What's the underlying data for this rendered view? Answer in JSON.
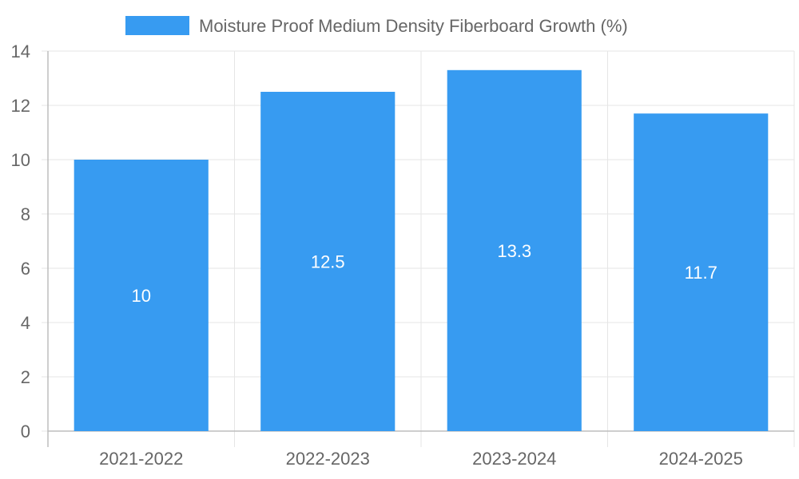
{
  "chart_data": {
    "type": "bar",
    "categories": [
      "2021-2022",
      "2022-2023",
      "2023-2024",
      "2024-2025"
    ],
    "series": [
      {
        "name": "Moisture Proof Medium Density Fiberboard Growth (%)",
        "values": [
          10,
          12.5,
          13.3,
          11.7
        ],
        "color": "#379bf1"
      }
    ],
    "data_labels": [
      "10",
      "12.5",
      "13.3",
      "11.7"
    ],
    "y_ticks": [
      "0",
      "2",
      "4",
      "6",
      "8",
      "10",
      "12",
      "14"
    ],
    "ylim": [
      0,
      14
    ],
    "grid": true,
    "legend_position": "top",
    "title": "",
    "xlabel": "",
    "ylabel": ""
  }
}
